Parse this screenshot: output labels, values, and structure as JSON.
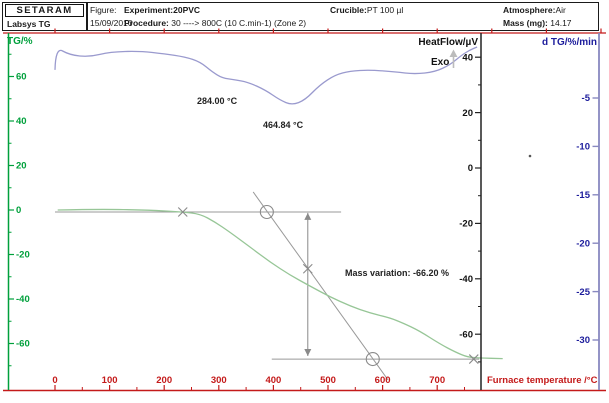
{
  "header": {
    "brand": "SETARAM",
    "instrument": "Labsys TG",
    "figure_label": "Figure:",
    "date": "15/09/2010",
    "experiment_label": "Experiment:",
    "experiment_value": "20PVC",
    "procedure_label": "Procedure:",
    "procedure_value": "30 ----> 800C (10 C.min-1) (Zone 2)",
    "crucible_label": "Crucible:",
    "crucible_value": "PT 100 µl",
    "atmosphere_label": "Atmosphere:",
    "atmosphere_value": "Air",
    "mass_label": "Mass (mg):",
    "mass_value": "14.17"
  },
  "chart_data": {
    "type": "line",
    "title": "",
    "legend": "none",
    "grid": false,
    "axes": {
      "x": {
        "label": "Furnace temperature /°C",
        "color": "#c41a1a",
        "min": 0,
        "max": 1010,
        "ticks": [
          0,
          100,
          200,
          300,
          400,
          500,
          600,
          700
        ]
      },
      "tg": {
        "label": "TG/%",
        "color": "#00a03c",
        "min": -80,
        "max": 80,
        "ticks": [
          60,
          40,
          20,
          0,
          -20,
          -40,
          -60
        ]
      },
      "heatflow": {
        "label": "HeatFlow/µV",
        "exo_label": "Exo",
        "color": "#111111",
        "min": -80,
        "max": 49,
        "ticks": [
          40,
          20,
          0,
          -20,
          -40,
          -60
        ]
      },
      "dtg": {
        "label": "d TG/%/min",
        "color": "#1c1c9c",
        "min": -35,
        "max": 0,
        "ticks": [
          -5,
          -10,
          -15,
          -20,
          -25,
          -30
        ]
      }
    },
    "series": [
      {
        "name": "TG",
        "axis": "tg",
        "color": "#97c697",
        "points": [
          [
            5,
            0
          ],
          [
            80,
            0.4
          ],
          [
            170,
            0
          ],
          [
            234,
            -0.9
          ],
          [
            266,
            -1.8
          ],
          [
            293,
            -5.4
          ],
          [
            320,
            -9.9
          ],
          [
            357,
            -16.6
          ],
          [
            394,
            -23.4
          ],
          [
            430,
            -29.2
          ],
          [
            467,
            -34.2
          ],
          [
            504,
            -39.1
          ],
          [
            540,
            -43.1
          ],
          [
            577,
            -46.3
          ],
          [
            614,
            -48.5
          ],
          [
            637,
            -50.8
          ],
          [
            668,
            -54.4
          ],
          [
            705,
            -60.2
          ],
          [
            733,
            -63.8
          ],
          [
            755,
            -66.1
          ],
          [
            778,
            -66.5
          ],
          [
            820,
            -66.8
          ]
        ]
      },
      {
        "name": "HeatFlow",
        "axis": "heatflow",
        "color": "#9a9ace",
        "points": [
          [
            0,
            35.4
          ],
          [
            1,
            43.7
          ],
          [
            27,
            40.8
          ],
          [
            64,
            40.1
          ],
          [
            101,
            41.9
          ],
          [
            156,
            42.2
          ],
          [
            201,
            41.2
          ],
          [
            238,
            40.1
          ],
          [
            266,
            38.3
          ],
          [
            288,
            34.7
          ],
          [
            306,
            32.5
          ],
          [
            330,
            31.8
          ],
          [
            353,
            31.0
          ],
          [
            385,
            28.2
          ],
          [
            412,
            24.5
          ],
          [
            434,
            22.7
          ],
          [
            458,
            24.5
          ],
          [
            485,
            30.0
          ],
          [
            513,
            33.6
          ],
          [
            540,
            35.0
          ],
          [
            577,
            35.4
          ],
          [
            623,
            34.7
          ],
          [
            659,
            33.9
          ],
          [
            696,
            34.7
          ],
          [
            723,
            37.2
          ],
          [
            745,
            40.8
          ],
          [
            760,
            42.6
          ],
          [
            773,
            43.7
          ]
        ]
      }
    ],
    "annotations": [
      {
        "id": "peak1",
        "text": "284.00 °C"
      },
      {
        "id": "peak2",
        "text": "464.84 °C"
      },
      {
        "id": "mass_variation",
        "text": "Mass variation: -66.20 %"
      }
    ],
    "construction": {
      "lines": [
        {
          "from": [
            0,
            -0.9
          ],
          "to": [
            524,
            -0.9
          ]
        },
        {
          "from": [
            363,
            8.1
          ],
          "to": [
            610,
            -76.4
          ]
        },
        {
          "from": [
            397,
            -67.0
          ],
          "to": [
            777,
            -67.0
          ]
        }
      ],
      "mass_arrow": {
        "T": 463,
        "tg_from": -1.3,
        "tg_to": -65.6
      },
      "markers": [
        {
          "shape": "x",
          "T": 234,
          "tg": -0.9
        },
        {
          "shape": "o",
          "T": 388,
          "tg": -0.9
        },
        {
          "shape": "x",
          "T": 463,
          "tg": -26.4
        },
        {
          "shape": "o",
          "T": 582,
          "tg": -67.0
        },
        {
          "shape": "x",
          "T": 767,
          "tg": -67.0
        }
      ]
    }
  }
}
